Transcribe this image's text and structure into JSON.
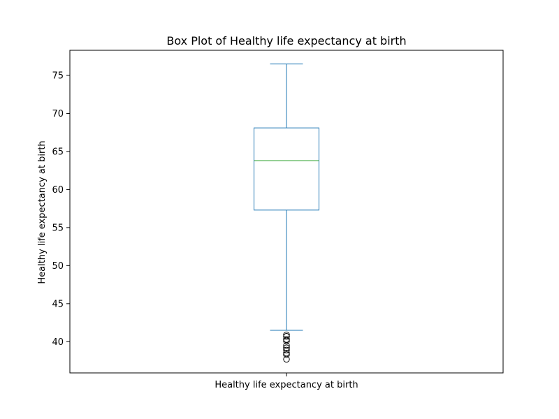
{
  "chart_data": {
    "type": "box",
    "title": "Box Plot of Healthy life expectancy at birth",
    "xlabel": "",
    "ylabel": "Healthy life expectancy at birth",
    "categories": [
      "Healthy life expectancy at birth"
    ],
    "ylim": [
      35.9,
      78.3
    ],
    "yticks": [
      40,
      45,
      50,
      55,
      60,
      65,
      70,
      75
    ],
    "grid": false,
    "boxes": [
      {
        "category": "Healthy life expectancy at birth",
        "whisker_low": 41.5,
        "q1": 57.3,
        "median": 63.8,
        "q3": 68.1,
        "whisker_high": 76.5,
        "outliers": [
          40.9,
          40.7,
          40.3,
          40.1,
          39.5,
          39.2,
          38.9,
          38.5,
          38.3,
          37.7
        ]
      }
    ],
    "colors": {
      "box": "#1f77b4",
      "median": "#2ca02c",
      "outlier": "#000000"
    }
  }
}
